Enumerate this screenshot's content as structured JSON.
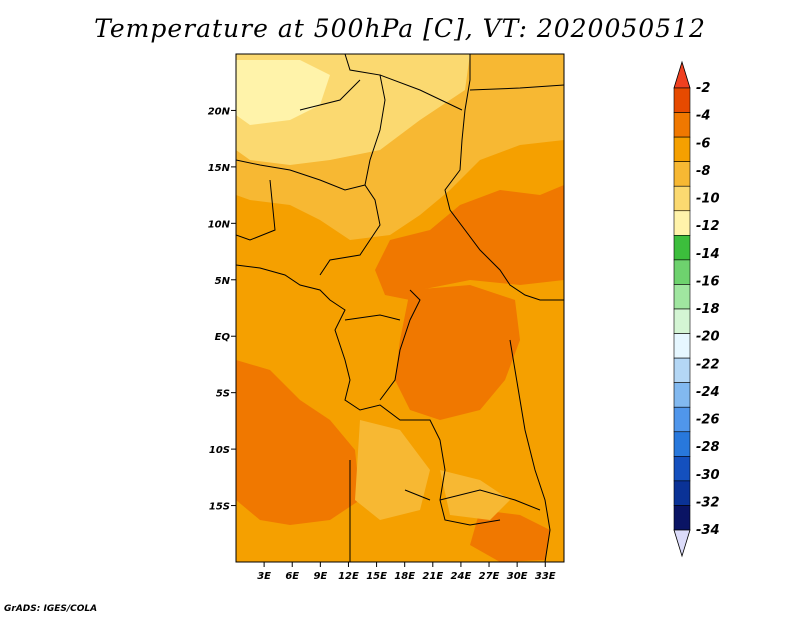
{
  "title": "Temperature at 500hPa [C], VT: 2020050512",
  "credit": "GrADS: IGES/COLA",
  "map": {
    "lat_labels": [
      "20N",
      "15N",
      "10N",
      "5N",
      "EQ",
      "5S",
      "10S",
      "15S"
    ],
    "lat_values": [
      20,
      15,
      10,
      5,
      0,
      -5,
      -10,
      -15
    ],
    "lon_labels": [
      "3E",
      "6E",
      "9E",
      "12E",
      "15E",
      "18E",
      "21E",
      "24E",
      "27E",
      "30E",
      "33E"
    ],
    "lon_values": [
      3,
      6,
      9,
      12,
      15,
      18,
      21,
      24,
      27,
      30,
      33
    ],
    "lon_range": [
      0,
      35
    ],
    "lat_range": [
      -20,
      25
    ]
  },
  "colorbar": {
    "labels": [
      "-2",
      "-4",
      "-6",
      "-8",
      "-10",
      "-12",
      "-14",
      "-16",
      "-18",
      "-20",
      "-22",
      "-24",
      "-26",
      "-28",
      "-30",
      "-32",
      "-34"
    ],
    "colors": [
      "#e64a00",
      "#f07800",
      "#f5a000",
      "#f7b833",
      "#fbd970",
      "#fff3aa",
      "#3cbe3c",
      "#6ed26e",
      "#a0e6a0",
      "#d4f5d4",
      "#e6f7ff",
      "#b4d7f5",
      "#82b9f0",
      "#5096eb",
      "#2878dc",
      "#1450be",
      "#0a3296",
      "#0a1464"
    ],
    "top_arrow_color": "#f04020",
    "bottom_arrow_color": "#dcdcfa"
  }
}
